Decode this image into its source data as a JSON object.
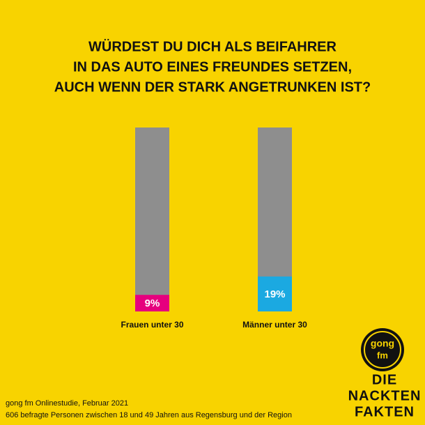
{
  "chart_data": {
    "type": "bar",
    "title": [
      "WÜRDEST DU DICH ALS BEIFAHRER",
      "IN DAS AUTO EINES FREUNDES SETZEN,",
      "AUCH WENN DER STARK ANGETRUNKEN IST?"
    ],
    "categories": [
      "Frauen unter 30",
      "Männer unter 30"
    ],
    "values": [
      9,
      19
    ],
    "value_labels": [
      "9%",
      "19%"
    ],
    "colors": [
      "#e6007e",
      "#1ba9e1"
    ],
    "track_color": "#8e8e8e",
    "ylim": [
      0,
      100
    ],
    "source": [
      "gong fm Onlinestudie, Februar 2021",
      "606 befragte Personen zwischen 18 und 49 Jahren aus Regensburg und der Region"
    ],
    "logo": {
      "top": "gong",
      "bottom": "fm"
    },
    "brand": [
      "DIE",
      "NACKTEN",
      "FAKTEN"
    ]
  }
}
